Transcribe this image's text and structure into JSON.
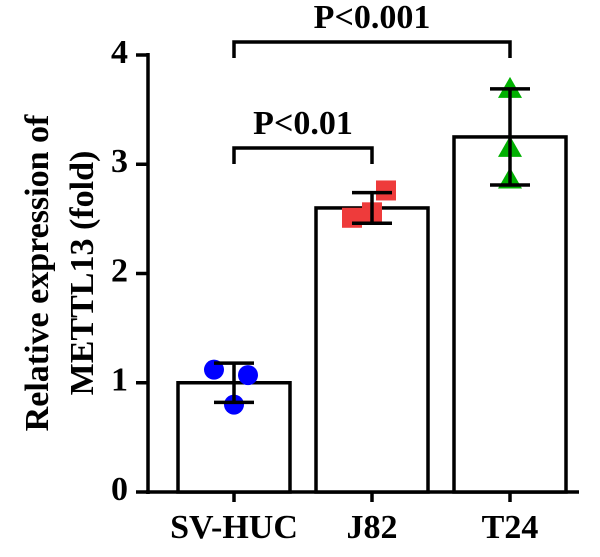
{
  "chart_data": {
    "type": "bar",
    "ylabel": [
      "Relative expression of",
      "METTL13 (fold)"
    ],
    "categories": [
      "SV-HUC",
      "J82",
      "T24"
    ],
    "values": [
      1.0,
      2.6,
      3.25
    ],
    "error": [
      0.18,
      0.14,
      0.44
    ],
    "points": [
      [
        1.12,
        1.07,
        0.8
      ],
      [
        2.51,
        2.76,
        2.56
      ],
      [
        3.69,
        3.15,
        2.86
      ]
    ],
    "point_colors": [
      "#0000ff",
      "#ee3b3b",
      "#00b000"
    ],
    "point_markers": [
      "circle",
      "square",
      "triangle"
    ],
    "bar_color": "#ffffff",
    "ylim": [
      0,
      4
    ],
    "yticks": [
      0,
      1,
      2,
      3,
      4
    ],
    "annotations": [
      {
        "text": "P<0.01",
        "from": 0,
        "to": 1
      },
      {
        "text": "P<0.001",
        "from": 0,
        "to": 2
      }
    ]
  }
}
